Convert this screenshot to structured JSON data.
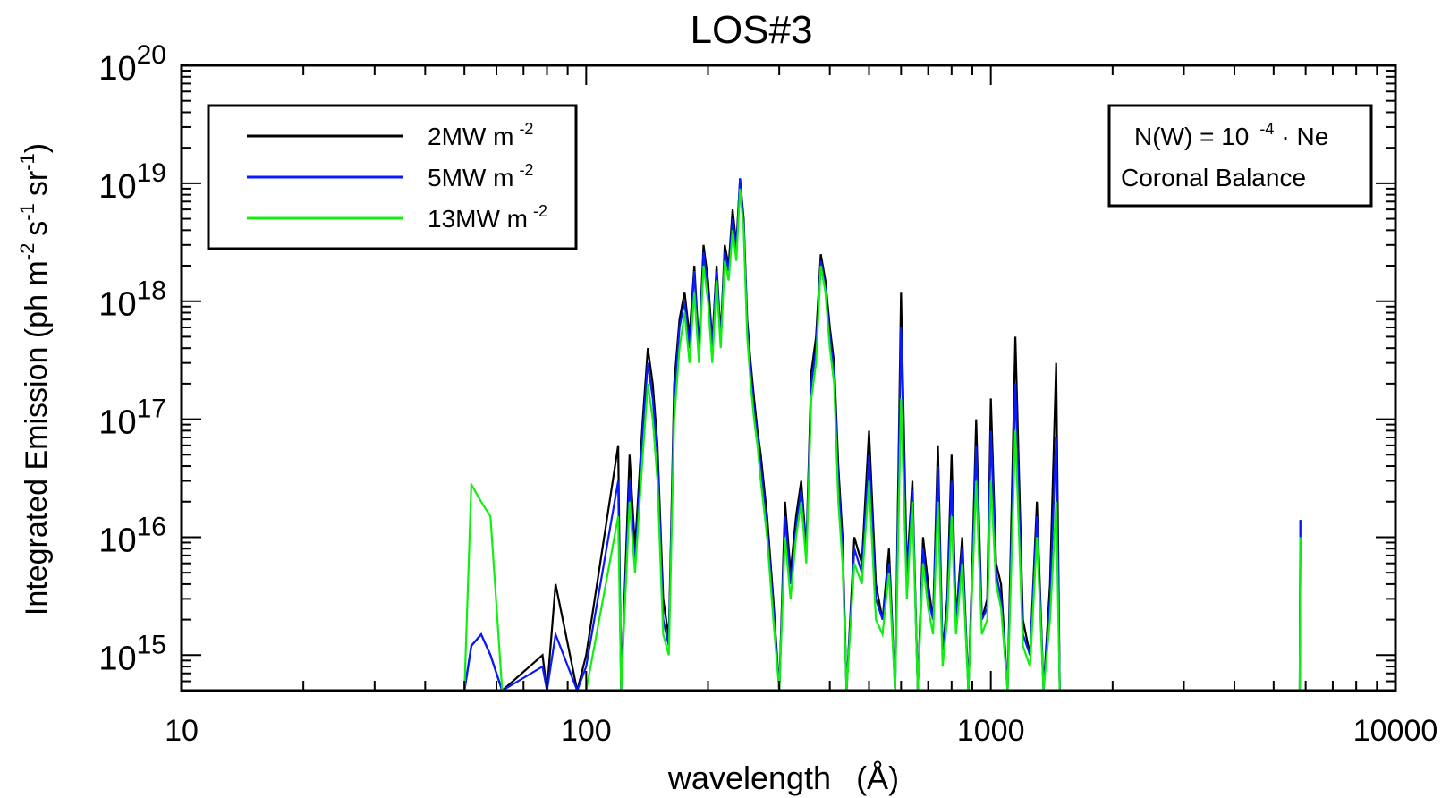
{
  "chart_data": {
    "type": "line",
    "title": "LOS#3",
    "xlabel": "wavelength",
    "xlabel_unit": "(Å)",
    "ylabel": "Integrated Emission (ph m",
    "ylabel_sup1": "-2",
    "ylabel_s": "s",
    "ylabel_sup2": "-1",
    "ylabel_sr": "sr",
    "ylabel_sup3": "-1",
    "ylabel_close": ")",
    "x_scale": "log",
    "y_scale": "log",
    "xlim": [
      10,
      10000
    ],
    "ylim": [
      500000000000000.0,
      1e+20
    ],
    "x_ticks": [
      {
        "value": 10,
        "label": "10"
      },
      {
        "value": 100,
        "label": "100"
      },
      {
        "value": 1000,
        "label": "1000"
      },
      {
        "value": 10000,
        "label": "10000"
      }
    ],
    "y_ticks": [
      {
        "value": 1000000000000000.0,
        "base": "10",
        "exp": "15"
      },
      {
        "value": 1e+16,
        "base": "10",
        "exp": "16"
      },
      {
        "value": 1e+17,
        "base": "10",
        "exp": "17"
      },
      {
        "value": 1e+18,
        "base": "10",
        "exp": "18"
      },
      {
        "value": 1e+19,
        "base": "10",
        "exp": "19"
      },
      {
        "value": 1e+20,
        "base": "10",
        "exp": "20"
      }
    ],
    "legend": {
      "placement": "top-left",
      "entries": [
        {
          "label": "2MW m",
          "sup": "-2",
          "color": "#000000"
        },
        {
          "label": "5MW m",
          "sup": "-2",
          "color": "#0a1aff"
        },
        {
          "label": "13MW m",
          "sup": "-2",
          "color": "#10f010"
        }
      ]
    },
    "annotation": {
      "placement": "top-right",
      "line1_pre": "N(W) = 10",
      "line1_sup": "-4",
      "line1_post": "· Ne",
      "line2": "Coronal Balance"
    },
    "series": [
      {
        "name": "2MW m-2",
        "color": "#000000",
        "x": [
          50,
          52,
          55,
          58,
          62,
          78,
          80,
          84,
          95,
          100,
          120,
          122,
          128,
          132,
          138,
          142,
          146,
          150,
          155,
          160,
          165,
          170,
          175,
          180,
          185,
          190,
          195,
          200,
          205,
          210,
          215,
          220,
          225,
          230,
          235,
          240,
          245,
          250,
          255,
          260,
          265,
          270,
          280,
          290,
          300,
          310,
          320,
          330,
          340,
          350,
          360,
          370,
          380,
          390,
          400,
          410,
          420,
          430,
          440,
          460,
          480,
          500,
          520,
          540,
          560,
          580,
          600,
          620,
          640,
          660,
          680,
          700,
          720,
          740,
          760,
          780,
          800,
          820,
          850,
          880,
          900,
          920,
          950,
          980,
          1000,
          1030,
          1060,
          1100,
          1150,
          1200,
          1250,
          1300,
          1350,
          1400,
          1450,
          1480,
          1500,
          1520,
          5800,
          5820
        ],
        "y": [
          500000000000000.0,
          1200000000000000.0,
          1500000000000000.0,
          1000000000000000.0,
          500000000000000.0,
          1000000000000000.0,
          500000000000000.0,
          4000000000000000.0,
          500000000000000.0,
          1000000000000000.0,
          6e+16,
          500000000000000.0,
          5e+16,
          8000000000000000.0,
          1e+17,
          4e+17,
          2e+17,
          6e+16,
          3000000000000000.0,
          1400000000000000.0,
          2e+17,
          7e+17,
          1.2e+18,
          5e+17,
          2e+18,
          4e+17,
          3e+18,
          1.5e+18,
          4.5e+17,
          2e+18,
          5e+17,
          3e+18,
          2e+18,
          6e+18,
          3e+18,
          1.1e+19,
          5e+18,
          7e+17,
          3e+17,
          1.5e+17,
          8e+16,
          5e+16,
          1.5e+16,
          3000000000000000.0,
          500000000000000.0,
          2e+16,
          5000000000000000.0,
          1.5e+16,
          3e+16,
          8000000000000000.0,
          2.5e+17,
          5e+17,
          2.5e+18,
          1.5e+18,
          6e+17,
          3e+17,
          4e+16,
          1e+16,
          500000000000000.0,
          1e+16,
          6000000000000000.0,
          8e+16,
          4000000000000000.0,
          2000000000000000.0,
          8000000000000000.0,
          500000000000000.0,
          1.2e+18,
          5000000000000000.0,
          3e+16,
          500000000000000.0,
          1e+16,
          4000000000000000.0,
          2000000000000000.0,
          6e+16,
          1000000000000000.0,
          3000000000000000.0,
          5e+16,
          2000000000000000.0,
          1e+16,
          500000000000000.0,
          6000000000000000.0,
          1e+17,
          2000000000000000.0,
          3000000000000000.0,
          1.5e+17,
          6000000000000000.0,
          4000000000000000.0,
          500000000000000.0,
          5e+17,
          2000000000000000.0,
          1000000000000000.0,
          2e+16,
          500000000000000.0,
          4000000000000000.0,
          3e+17,
          500000000000000.0,
          500000000000000.0,
          500000000000000.0,
          500000000000000.0,
          1.4e+16
        ]
      },
      {
        "name": "5MW m-2",
        "color": "#0a1aff",
        "x": [
          50,
          52,
          55,
          58,
          62,
          78,
          80,
          84,
          95,
          100,
          120,
          122,
          128,
          132,
          138,
          142,
          146,
          150,
          155,
          160,
          165,
          170,
          175,
          180,
          185,
          190,
          195,
          200,
          205,
          210,
          215,
          220,
          225,
          230,
          235,
          240,
          245,
          250,
          255,
          260,
          265,
          270,
          280,
          290,
          300,
          310,
          320,
          330,
          340,
          350,
          360,
          370,
          380,
          390,
          400,
          410,
          420,
          430,
          440,
          460,
          480,
          500,
          520,
          540,
          560,
          580,
          600,
          620,
          640,
          660,
          680,
          700,
          720,
          740,
          760,
          780,
          800,
          820,
          850,
          880,
          900,
          920,
          950,
          980,
          1000,
          1030,
          1060,
          1100,
          1150,
          1200,
          1250,
          1300,
          1350,
          1400,
          1450,
          1480,
          1500,
          1520,
          5800,
          5820
        ],
        "y": [
          500000000000000.0,
          1200000000000000.0,
          1500000000000000.0,
          1000000000000000.0,
          500000000000000.0,
          800000000000000.0,
          500000000000000.0,
          1500000000000000.0,
          500000000000000.0,
          800000000000000.0,
          3e+16,
          500000000000000.0,
          3e+16,
          6000000000000000.0,
          8e+16,
          3e+17,
          1.5e+17,
          5e+16,
          2000000000000000.0,
          1200000000000000.0,
          1.5e+17,
          6e+17,
          1e+18,
          4e+17,
          1.8e+18,
          3.5e+17,
          2.6e+18,
          1.2e+18,
          4e+17,
          1.8e+18,
          4.5e+17,
          2.6e+18,
          1.8e+18,
          5e+18,
          2.6e+18,
          1.1e+19,
          4.5e+18,
          6e+17,
          2.5e+17,
          1.2e+17,
          7e+16,
          4e+16,
          1.2e+16,
          2500000000000000.0,
          500000000000000.0,
          1.5e+16,
          4000000000000000.0,
          1.2e+16,
          2.5e+16,
          7000000000000000.0,
          2e+17,
          4e+17,
          2.2e+18,
          1.3e+18,
          5e+17,
          2.5e+17,
          3e+16,
          8000000000000000.0,
          500000000000000.0,
          8000000000000000.0,
          5000000000000000.0,
          5e+16,
          3000000000000000.0,
          2000000000000000.0,
          6000000000000000.0,
          500000000000000.0,
          6e+17,
          4000000000000000.0,
          2.5e+16,
          500000000000000.0,
          8000000000000000.0,
          3000000000000000.0,
          2000000000000000.0,
          4e+16,
          1000000000000000.0,
          2500000000000000.0,
          3e+16,
          2000000000000000.0,
          8000000000000000.0,
          500000000000000.0,
          5000000000000000.0,
          6e+16,
          2000000000000000.0,
          2500000000000000.0,
          8e+16,
          5000000000000000.0,
          3000000000000000.0,
          500000000000000.0,
          2e+17,
          1500000000000000.0,
          1000000000000000.0,
          1.5e+16,
          500000000000000.0,
          3000000000000000.0,
          7e+16,
          500000000000000.0,
          500000000000000.0,
          500000000000000.0,
          500000000000000.0,
          1.4e+16
        ]
      },
      {
        "name": "13MW m-2",
        "color": "#10f010",
        "x": [
          50,
          52,
          55,
          58,
          62,
          78,
          80,
          84,
          95,
          100,
          120,
          122,
          128,
          132,
          138,
          142,
          146,
          150,
          155,
          160,
          165,
          170,
          175,
          180,
          185,
          190,
          195,
          200,
          205,
          210,
          215,
          220,
          225,
          230,
          235,
          240,
          245,
          250,
          255,
          260,
          265,
          270,
          280,
          290,
          300,
          310,
          320,
          330,
          340,
          350,
          360,
          370,
          380,
          390,
          400,
          410,
          420,
          430,
          440,
          460,
          480,
          500,
          520,
          540,
          560,
          580,
          600,
          620,
          640,
          660,
          680,
          700,
          720,
          740,
          760,
          780,
          800,
          820,
          850,
          880,
          900,
          920,
          950,
          980,
          1000,
          1030,
          1060,
          1100,
          1150,
          1200,
          1250,
          1300,
          1350,
          1400,
          1450,
          1480,
          1500,
          1520,
          5800,
          5820
        ],
        "y": [
          500000000000000.0,
          2.8e+16,
          2e+16,
          1.5e+16,
          500000000000000.0,
          500000000000000.0,
          500000000000000.0,
          500000000000000.0,
          500000000000000.0,
          500000000000000.0,
          1.5e+16,
          500000000000000.0,
          2e+16,
          5000000000000000.0,
          5e+16,
          2e+17,
          1e+17,
          3e+16,
          1500000000000000.0,
          1000000000000000.0,
          1e+17,
          4e+17,
          8e+17,
          3e+17,
          1.2e+18,
          3e+17,
          2e+18,
          1e+18,
          3e+17,
          1.5e+18,
          4e+17,
          2.2e+18,
          1.5e+18,
          4e+18,
          2.2e+18,
          9e+18,
          4e+18,
          5e+17,
          2e+17,
          1e+17,
          6e+16,
          3e+16,
          1e+16,
          2000000000000000.0,
          500000000000000.0,
          1e+16,
          3000000000000000.0,
          1e+16,
          2e+16,
          6000000000000000.0,
          1.5e+17,
          3e+17,
          2e+18,
          1.2e+18,
          4e+17,
          2e+17,
          2e+16,
          6000000000000000.0,
          500000000000000.0,
          6000000000000000.0,
          4000000000000000.0,
          3e+16,
          2000000000000000.0,
          1500000000000000.0,
          5000000000000000.0,
          500000000000000.0,
          1.5e+17,
          3000000000000000.0,
          2e+16,
          500000000000000.0,
          6000000000000000.0,
          2500000000000000.0,
          1500000000000000.0,
          2e+16,
          800000000000000.0,
          2000000000000000.0,
          1.5e+16,
          1500000000000000.0,
          6000000000000000.0,
          500000000000000.0,
          4000000000000000.0,
          3e+16,
          1500000000000000.0,
          2000000000000000.0,
          3e+16,
          4000000000000000.0,
          2500000000000000.0,
          500000000000000.0,
          8e+16,
          1200000000000000.0,
          800000000000000.0,
          1e+16,
          500000000000000.0,
          2000000000000000.0,
          2e+16,
          500000000000000.0,
          500000000000000.0,
          500000000000000.0,
          500000000000000.0,
          1e+16
        ]
      }
    ]
  }
}
